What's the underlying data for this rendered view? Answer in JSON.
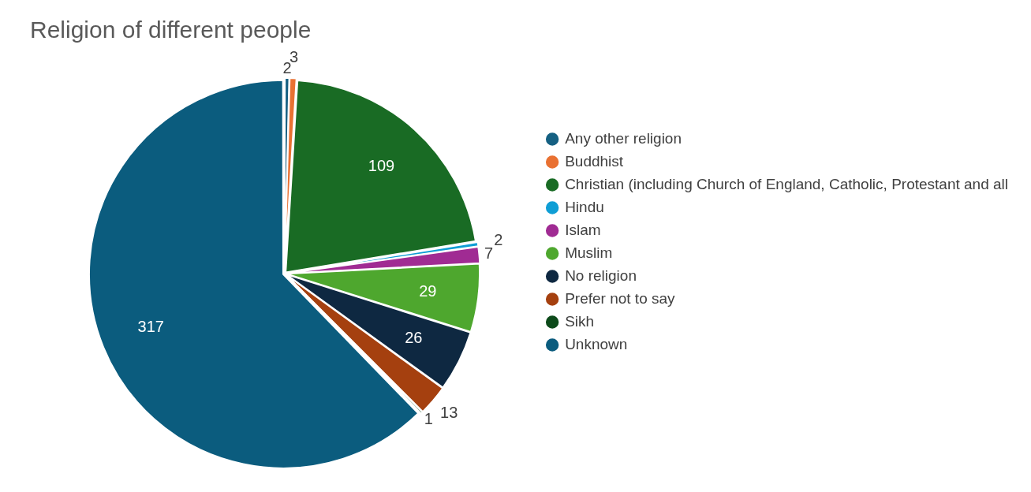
{
  "chart_data": {
    "type": "pie",
    "title": "Religion of different people",
    "categories": [
      "Any other religion",
      "Buddhist",
      "Christian (including Church of England, Catholic, Protestant and all",
      "Hindu",
      "Islam",
      "Muslim",
      "No religion",
      "Prefer not to say",
      "Sikh",
      "Unknown"
    ],
    "values": [
      2,
      3,
      109,
      2,
      7,
      29,
      26,
      13,
      1,
      317
    ],
    "colors": [
      "#156082",
      "#e97132",
      "#196b24",
      "#0f9ed5",
      "#a02b93",
      "#4ea72e",
      "#0e2841",
      "#a5400f",
      "#0d4a1a",
      "#0b5c7e"
    ],
    "data_labels": true,
    "legend": "right"
  }
}
